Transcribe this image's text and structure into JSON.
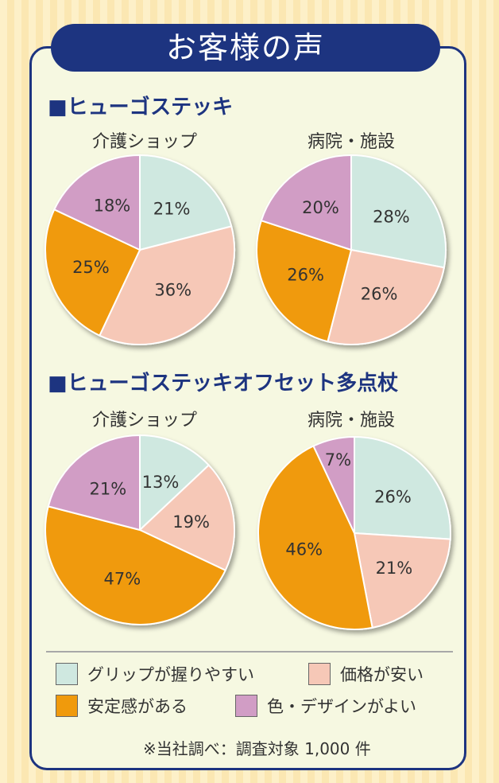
{
  "title": "お客様の声",
  "colors": {
    "grip": "#cfe8e0",
    "price": "#f6c8b7",
    "stable": "#f09a0c",
    "design": "#d19dc5",
    "navy": "#1d3480"
  },
  "sections": [
    {
      "title": "■ヒューゴステッキ"
    },
    {
      "title": "■ヒューゴステッキオフセット多点杖"
    }
  ],
  "legend": [
    {
      "key": "grip",
      "label": "グリップが握りやすい"
    },
    {
      "key": "price",
      "label": "価格が安い"
    },
    {
      "key": "stable",
      "label": "安定感がある"
    },
    {
      "key": "design",
      "label": "色・デザインがよい"
    }
  ],
  "footnote": "※当社調べ：調査対象 1,000 件",
  "chart_data": [
    {
      "type": "pie",
      "title": "介護ショップ",
      "categories": [
        "グリップが握りやすい",
        "価格が安い",
        "安定感がある",
        "色・デザインがよい"
      ],
      "values": [
        21,
        36,
        25,
        18
      ],
      "labels": [
        "21%",
        "36%",
        "25%",
        "18%"
      ]
    },
    {
      "type": "pie",
      "title": "病院・施設",
      "categories": [
        "グリップが握りやすい",
        "価格が安い",
        "安定感がある",
        "色・デザインがよい"
      ],
      "values": [
        28,
        26,
        26,
        20
      ],
      "labels": [
        "28%",
        "26%",
        "26%",
        "20%"
      ]
    },
    {
      "type": "pie",
      "title": "介護ショップ",
      "categories": [
        "グリップが握りやすい",
        "価格が安い",
        "安定感がある",
        "色・デザインがよい"
      ],
      "values": [
        13,
        19,
        47,
        21
      ],
      "labels": [
        "13%",
        "19%",
        "47%",
        "21%"
      ]
    },
    {
      "type": "pie",
      "title": "病院・施設",
      "categories": [
        "グリップが握りやすい",
        "価格が安い",
        "安定感がある",
        "色・デザインがよい"
      ],
      "values": [
        26,
        21,
        46,
        7
      ],
      "labels": [
        "26%",
        "21%",
        "46%",
        "7%"
      ]
    }
  ]
}
